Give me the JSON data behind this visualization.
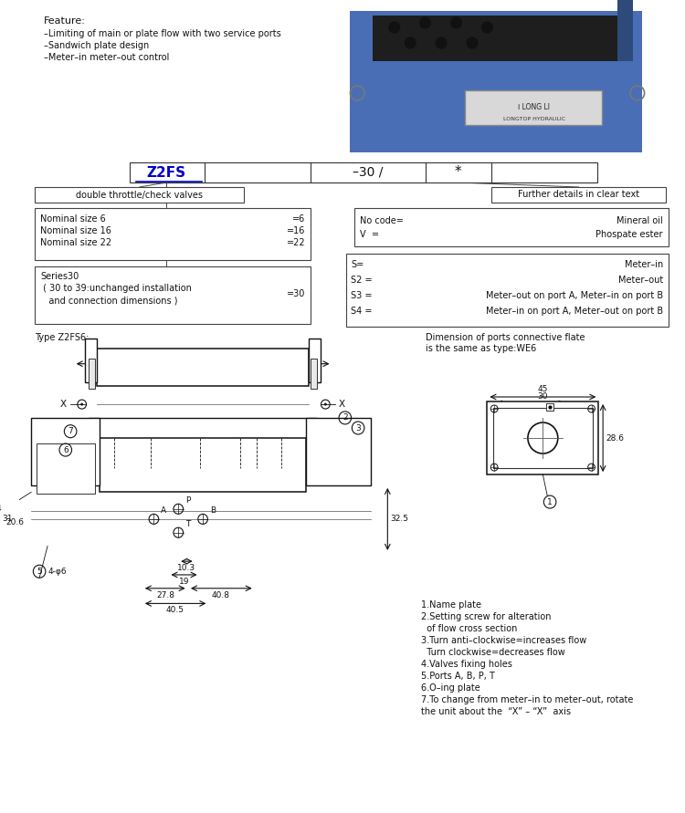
{
  "bg_color": "#ffffff",
  "feature_title": "Feature:",
  "feature_lines": [
    "–Limiting of main or plate flow with two service ports",
    "–Sandwich plate design",
    "–Meter–in meter–out control"
  ],
  "box1_text": "double throttle/check valves",
  "box2_text": "Further details in clear text",
  "type_label": "Type Z2FS6:",
  "dim_label": "Dimension of ports connective flate\nis the same as type:WE6",
  "notes": [
    "1.Name plate",
    "2.Setting screw for alteration",
    "  of flow cross section",
    "3.Turn anti–clockwise=increases flow",
    "  Turn clockwise=decreases flow",
    "4.Valves fixing holes",
    "5.Ports A, B, P, T",
    "6.O–ing plate",
    "7.To change from meter–in to meter–out, rotate",
    "the unit about the  “X” – “X”  axis"
  ]
}
